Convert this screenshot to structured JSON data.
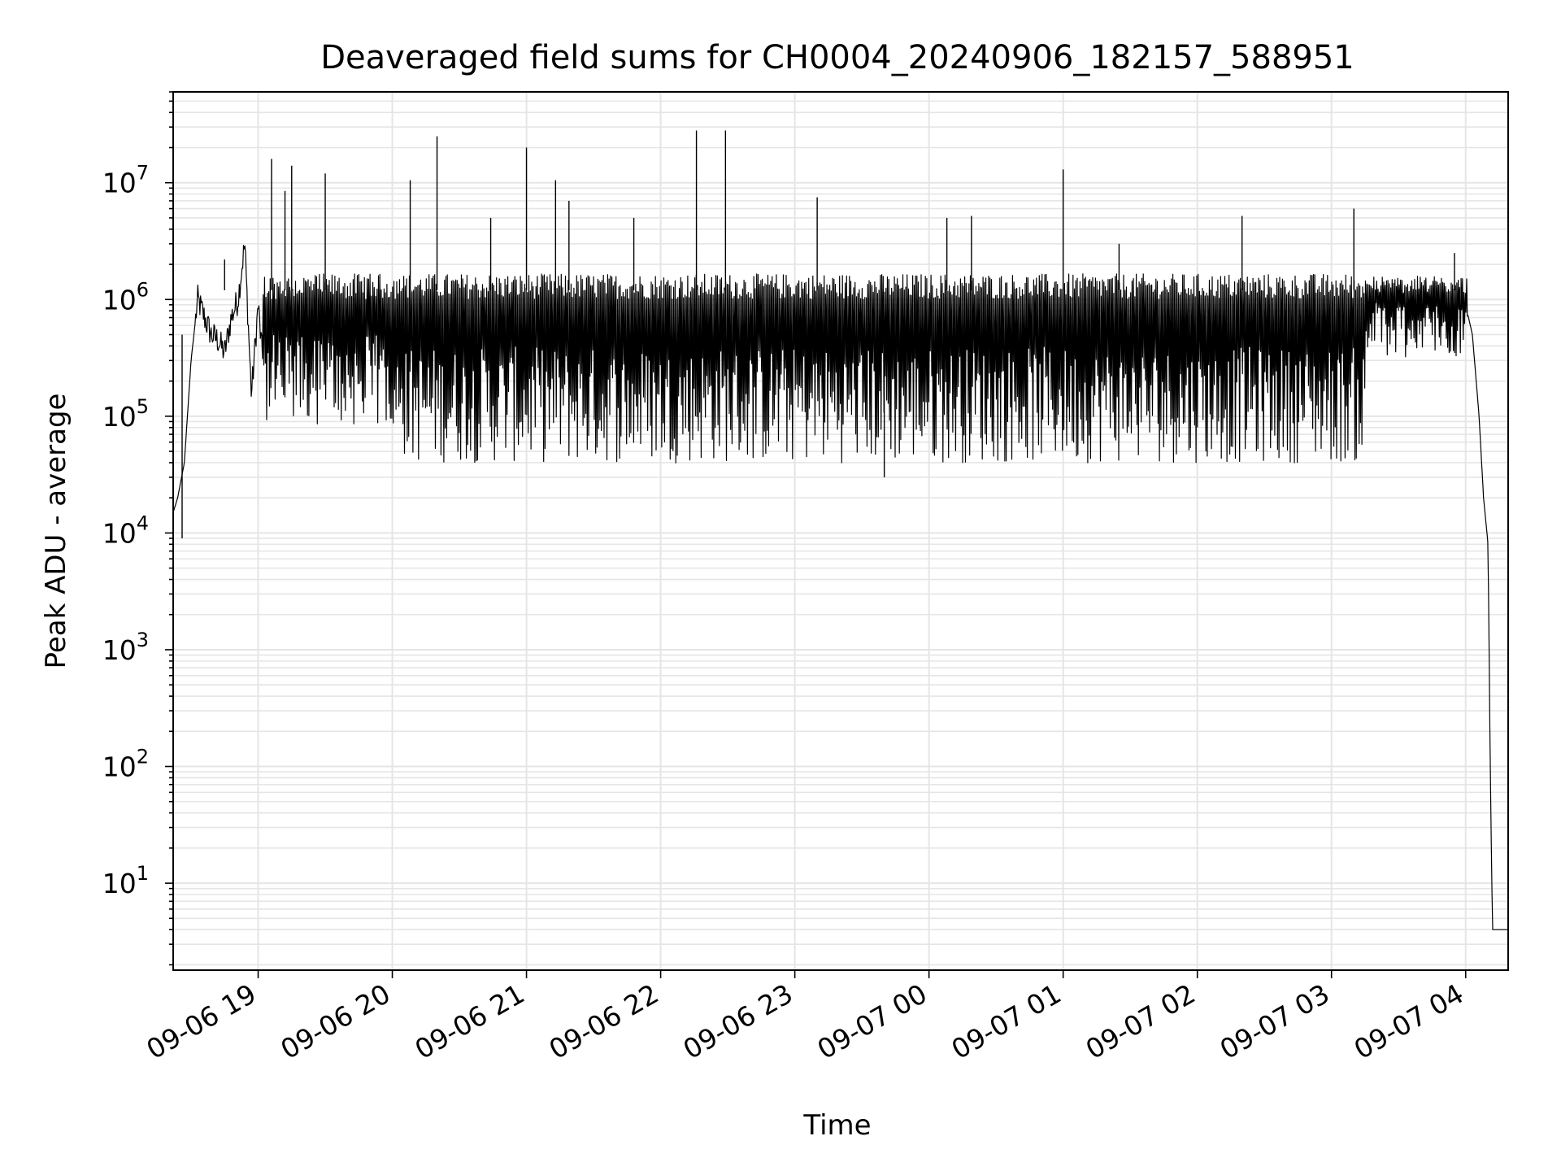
{
  "chart_data": {
    "type": "line",
    "title": "Deaveraged field sums for CH0004_20240906_182157_588951",
    "xlabel": "Time",
    "ylabel": "Peak ADU - average",
    "yscale": "log",
    "grid": true,
    "line_color": "#000000",
    "grid_color": "#e5e5e5",
    "xlim": [
      "2024-09-06 18:22",
      "2024-09-07 04:19"
    ],
    "ylim": [
      1.8,
      60000000
    ],
    "x_ticks": [
      "09-06 19",
      "09-06 20",
      "09-06 21",
      "09-06 22",
      "09-06 23",
      "09-07 00",
      "09-07 01",
      "09-07 02",
      "09-07 03",
      "09-07 04"
    ],
    "y_ticks": [
      {
        "base": "10",
        "exp": "1",
        "value": 10
      },
      {
        "base": "10",
        "exp": "2",
        "value": 100
      },
      {
        "base": "10",
        "exp": "3",
        "value": 1000
      },
      {
        "base": "10",
        "exp": "4",
        "value": 10000
      },
      {
        "base": "10",
        "exp": "5",
        "value": 100000
      },
      {
        "base": "10",
        "exp": "6",
        "value": 1000000
      },
      {
        "base": "10",
        "exp": "7",
        "value": 10000000
      }
    ],
    "series": [
      {
        "x": [
          "2024-09-06 18:22",
          "2024-09-06 18:24",
          "2024-09-06 18:27",
          "2024-09-06 18:30",
          "2024-09-06 18:33",
          "2024-09-06 18:36",
          "2024-09-06 18:39",
          "2024-09-06 18:42",
          "2024-09-06 18:45",
          "2024-09-06 18:48",
          "2024-09-06 18:51",
          "2024-09-06 18:54",
          "2024-09-06 18:57",
          "2024-09-06 19:00",
          "2024-09-06 19:04",
          "2024-09-06 19:07",
          "2024-09-06 19:10",
          "2024-09-06 19:15",
          "2024-09-06 19:20",
          "2024-09-06 19:30",
          "2024-09-06 19:40",
          "2024-09-06 19:55",
          "2024-09-06 20:05",
          "2024-09-06 20:20",
          "2024-09-06 20:35",
          "2024-09-06 20:50",
          "2024-09-06 21:05",
          "2024-09-06 21:20",
          "2024-09-06 21:35",
          "2024-09-06 21:50",
          "2024-09-06 22:05",
          "2024-09-06 22:20",
          "2024-09-06 22:35",
          "2024-09-06 22:50",
          "2024-09-06 23:05",
          "2024-09-06 23:20",
          "2024-09-06 23:35",
          "2024-09-06 23:50",
          "2024-09-07 00:05",
          "2024-09-07 00:20",
          "2024-09-07 00:35",
          "2024-09-07 00:50",
          "2024-09-07 01:05",
          "2024-09-07 01:20",
          "2024-09-07 01:35",
          "2024-09-07 01:50",
          "2024-09-07 02:05",
          "2024-09-07 02:20",
          "2024-09-07 02:35",
          "2024-09-07 02:50",
          "2024-09-07 03:05",
          "2024-09-07 03:20",
          "2024-09-07 03:35",
          "2024-09-07 03:50",
          "2024-09-07 04:00",
          "2024-09-07 04:03",
          "2024-09-07 04:06",
          "2024-09-07 04:08",
          "2024-09-07 04:10",
          "2024-09-07 04:11",
          "2024-09-07 04:12",
          "2024-09-07 04:19"
        ],
        "y": [
          15000,
          20000,
          40000,
          300000,
          1000000,
          700000,
          500000,
          450000,
          350000,
          700000,
          1000000,
          3000000,
          150000,
          900000,
          100000,
          500000,
          90000,
          400000,
          120000,
          600000,
          90000,
          700000,
          120000,
          1400000,
          150000,
          1300000,
          100000,
          1500000,
          80000,
          1400000,
          70000,
          1400000,
          60000,
          1400000,
          60000,
          1400000,
          70000,
          1300000,
          80000,
          1300000,
          70000,
          1300000,
          80000,
          1200000,
          90000,
          1200000,
          80000,
          900000,
          120000,
          1000000,
          150000,
          1200000,
          400000,
          900000,
          900000,
          500000,
          100000,
          20000,
          8000,
          100,
          4,
          4
        ]
      }
    ],
    "spikes": [
      {
        "x": "2024-09-06 18:26",
        "y": 9000
      },
      {
        "x": "2024-09-06 18:45",
        "y": 2200000
      },
      {
        "x": "2024-09-06 19:06",
        "y": 16000000
      },
      {
        "x": "2024-09-06 19:12",
        "y": 8500000
      },
      {
        "x": "2024-09-06 19:15",
        "y": 14000000
      },
      {
        "x": "2024-09-06 19:30",
        "y": 12000000
      },
      {
        "x": "2024-09-06 20:08",
        "y": 10500000
      },
      {
        "x": "2024-09-06 20:20",
        "y": 25000000
      },
      {
        "x": "2024-09-06 20:44",
        "y": 5000000
      },
      {
        "x": "2024-09-06 21:00",
        "y": 20000000
      },
      {
        "x": "2024-09-06 21:13",
        "y": 10500000
      },
      {
        "x": "2024-09-06 21:19",
        "y": 7000000
      },
      {
        "x": "2024-09-06 21:48",
        "y": 5000000
      },
      {
        "x": "2024-09-06 22:16",
        "y": 28000000
      },
      {
        "x": "2024-09-06 22:29",
        "y": 28000000
      },
      {
        "x": "2024-09-06 23:10",
        "y": 7500000
      },
      {
        "x": "2024-09-06 23:40",
        "y": 30000
      },
      {
        "x": "2024-09-07 00:08",
        "y": 5000000
      },
      {
        "x": "2024-09-07 00:19",
        "y": 5200000
      },
      {
        "x": "2024-09-07 01:00",
        "y": 13000000
      },
      {
        "x": "2024-09-07 01:25",
        "y": 3000000
      },
      {
        "x": "2024-09-07 02:20",
        "y": 5200000
      },
      {
        "x": "2024-09-07 03:10",
        "y": 6000000
      },
      {
        "x": "2024-09-07 03:55",
        "y": 2500000
      }
    ]
  }
}
